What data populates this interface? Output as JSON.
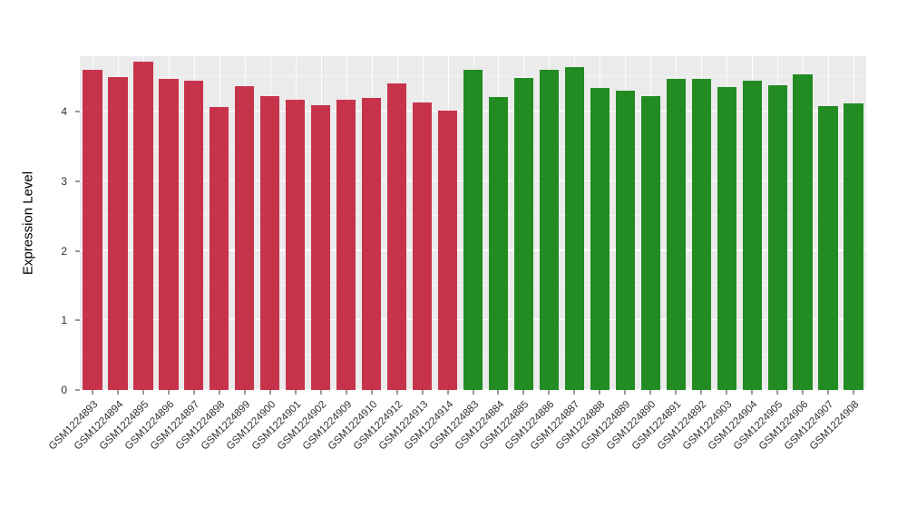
{
  "figure": {
    "background": "#ffffff",
    "panel_background": "#EBEBEB",
    "grid_color": "#ffffff",
    "axis_text_color": "#303030"
  },
  "chart_data": {
    "type": "bar",
    "title": "",
    "xlabel": "",
    "ylabel": "Expression Level",
    "ylim": [
      0,
      4.8
    ],
    "yticks": [
      0,
      1,
      2,
      3,
      4
    ],
    "grid": true,
    "legend": false,
    "groups": {
      "red": "#C8334C",
      "green": "#228B22"
    },
    "bars": [
      {
        "label": "GSM1224893",
        "value": 4.6,
        "group": "red"
      },
      {
        "label": "GSM1224894",
        "value": 4.5,
        "group": "red"
      },
      {
        "label": "GSM1224895",
        "value": 4.72,
        "group": "red"
      },
      {
        "label": "GSM1224896",
        "value": 4.47,
        "group": "red"
      },
      {
        "label": "GSM1224897",
        "value": 4.45,
        "group": "red"
      },
      {
        "label": "GSM1224898",
        "value": 4.07,
        "group": "red"
      },
      {
        "label": "GSM1224899",
        "value": 4.37,
        "group": "red"
      },
      {
        "label": "GSM1224900",
        "value": 4.23,
        "group": "red"
      },
      {
        "label": "GSM1224901",
        "value": 4.17,
        "group": "red"
      },
      {
        "label": "GSM1224902",
        "value": 4.1,
        "group": "red"
      },
      {
        "label": "GSM1224909",
        "value": 4.18,
        "group": "red"
      },
      {
        "label": "GSM1224910",
        "value": 4.2,
        "group": "red"
      },
      {
        "label": "GSM1224912",
        "value": 4.41,
        "group": "red"
      },
      {
        "label": "GSM1224913",
        "value": 4.13,
        "group": "red"
      },
      {
        "label": "GSM1224914",
        "value": 4.02,
        "group": "red"
      },
      {
        "label": "GSM1224883",
        "value": 4.6,
        "group": "green"
      },
      {
        "label": "GSM1224884",
        "value": 4.21,
        "group": "green"
      },
      {
        "label": "GSM1224885",
        "value": 4.49,
        "group": "green"
      },
      {
        "label": "GSM1224886",
        "value": 4.6,
        "group": "green"
      },
      {
        "label": "GSM1224887",
        "value": 4.64,
        "group": "green"
      },
      {
        "label": "GSM1224888",
        "value": 4.35,
        "group": "green"
      },
      {
        "label": "GSM1224889",
        "value": 4.3,
        "group": "green"
      },
      {
        "label": "GSM1224890",
        "value": 4.22,
        "group": "green"
      },
      {
        "label": "GSM1224891",
        "value": 4.48,
        "group": "green"
      },
      {
        "label": "GSM1224892",
        "value": 4.47,
        "group": "green"
      },
      {
        "label": "GSM1224903",
        "value": 4.36,
        "group": "green"
      },
      {
        "label": "GSM1224904",
        "value": 4.45,
        "group": "green"
      },
      {
        "label": "GSM1224905",
        "value": 4.38,
        "group": "green"
      },
      {
        "label": "GSM1224906",
        "value": 4.54,
        "group": "green"
      },
      {
        "label": "GSM1224907",
        "value": 4.08,
        "group": "green"
      },
      {
        "label": "GSM1224908",
        "value": 4.12,
        "group": "green"
      }
    ]
  }
}
